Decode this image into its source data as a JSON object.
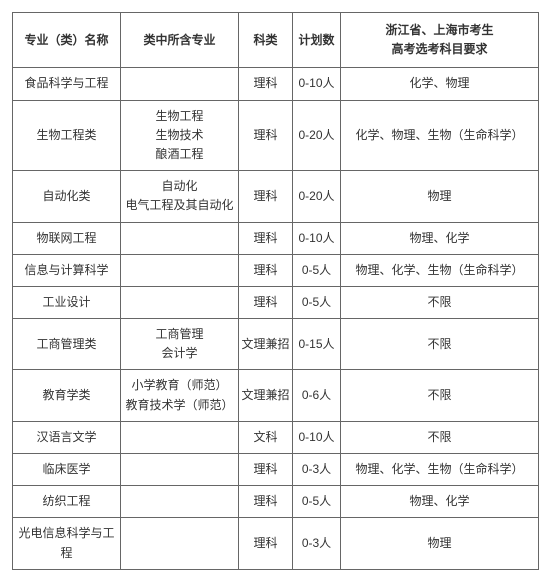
{
  "headers": {
    "major": "专业（类）名称",
    "subjects": "类中所含专业",
    "category": "科类",
    "plan": "计划数",
    "requirement_line1": "浙江省、上海市考生",
    "requirement_line2": "高考选考科目要求"
  },
  "rows": [
    {
      "major": "食品科学与工程",
      "subjects": "",
      "category": "理科",
      "plan": "0-10人",
      "requirement": "化学、物理"
    },
    {
      "major": "生物工程类",
      "subjects": "生物工程\n生物技术\n酿酒工程",
      "category": "理科",
      "plan": "0-20人",
      "requirement": "化学、物理、生物（生命科学）"
    },
    {
      "major": "自动化类",
      "subjects": "自动化\n电气工程及其自动化",
      "category": "理科",
      "plan": "0-20人",
      "requirement": "物理"
    },
    {
      "major": "物联网工程",
      "subjects": "",
      "category": "理科",
      "plan": "0-10人",
      "requirement": "物理、化学"
    },
    {
      "major": "信息与计算科学",
      "subjects": "",
      "category": "理科",
      "plan": "0-5人",
      "requirement": "物理、化学、生物（生命科学）"
    },
    {
      "major": "工业设计",
      "subjects": "",
      "category": "理科",
      "plan": "0-5人",
      "requirement": "不限"
    },
    {
      "major": "工商管理类",
      "subjects": "工商管理\n会计学",
      "category": "文理兼招",
      "plan": "0-15人",
      "requirement": "不限"
    },
    {
      "major": "教育学类",
      "subjects": "小学教育（师范）\n教育技术学（师范）",
      "category": "文理兼招",
      "plan": "0-6人",
      "requirement": "不限"
    },
    {
      "major": "汉语言文学",
      "subjects": "",
      "category": "文科",
      "plan": "0-10人",
      "requirement": "不限"
    },
    {
      "major": "临床医学",
      "subjects": "",
      "category": "理科",
      "plan": "0-3人",
      "requirement": "物理、化学、生物（生命科学）"
    },
    {
      "major": "纺织工程",
      "subjects": "",
      "category": "理科",
      "plan": "0-5人",
      "requirement": "物理、化学"
    },
    {
      "major": "光电信息科学与工程",
      "subjects": "",
      "category": "理科",
      "plan": "0-3人",
      "requirement": "物理"
    }
  ]
}
